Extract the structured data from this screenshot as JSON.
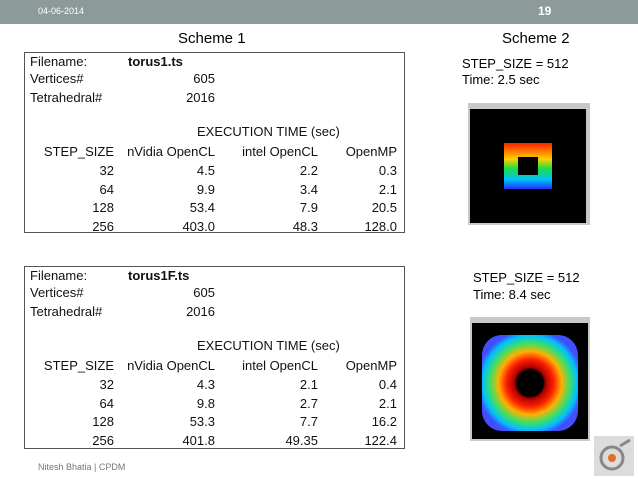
{
  "header": {
    "date": "04-06-2014",
    "page": "19"
  },
  "schemes": [
    "Scheme 1",
    "Scheme 2"
  ],
  "tables": [
    {
      "info": [
        [
          "Filename:",
          "torus1.ts"
        ],
        [
          "Vertices#",
          "605"
        ],
        [
          "Tetrahedral#",
          "2016"
        ]
      ],
      "caption": "EXECUTION TIME (sec)",
      "columns": [
        "STEP_SIZE",
        "nVidia OpenCL",
        "intel OpenCL",
        "OpenMP"
      ],
      "rows": [
        [
          "32",
          "4.5",
          "2.2",
          "0.3"
        ],
        [
          "64",
          "9.9",
          "3.4",
          "2.1"
        ],
        [
          "128",
          "53.4",
          "7.9",
          "20.5"
        ],
        [
          "256",
          "403.0",
          "48.3",
          "128.0"
        ]
      ]
    },
    {
      "info": [
        [
          "Filename:",
          "torus1F.ts"
        ],
        [
          "Vertices#",
          "605"
        ],
        [
          "Tetrahedral#",
          "2016"
        ]
      ],
      "caption": "EXECUTION TIME (sec)",
      "columns": [
        "STEP_SIZE",
        "nVidia OpenCL",
        "intel OpenCL",
        "OpenMP"
      ],
      "rows": [
        [
          "32",
          "4.3",
          "2.1",
          "0.4"
        ],
        [
          "64",
          "9.8",
          "2.7",
          "2.1"
        ],
        [
          "128",
          "53.3",
          "7.7",
          "16.2"
        ],
        [
          "256",
          "401.8",
          "49.35",
          "122.4"
        ]
      ]
    }
  ],
  "results": [
    {
      "step": "STEP_SIZE = 512",
      "time": "Time: 2.5 sec"
    },
    {
      "step": "STEP_SIZE = 512",
      "time": "Time: 8.4 sec"
    }
  ],
  "footer": "Nitesh Bhatia | CPDM"
}
